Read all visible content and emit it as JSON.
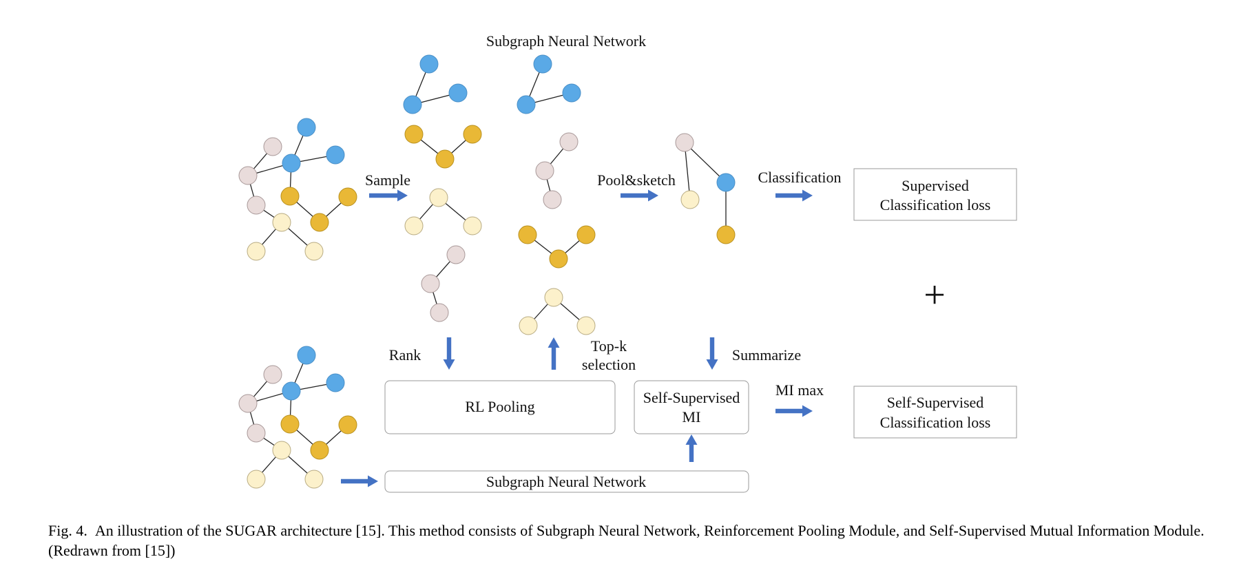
{
  "labels": {
    "subgraph_nn_top": "Subgraph Neural Network",
    "sample": "Sample",
    "pool_sketch": "Pool&sketch",
    "classification": "Classification",
    "supervised_loss": [
      "Supervised",
      "Classification loss"
    ],
    "plus": "+",
    "rank": "Rank",
    "topk": [
      "Top-k",
      "selection"
    ],
    "summarize": "Summarize",
    "rl_pooling": "RL Pooling",
    "self_supervised_mi": [
      "Self-Supervised",
      "MI"
    ],
    "mi_max": "MI max",
    "self_supervised_loss": [
      "Self-Supervised",
      "Classification loss"
    ],
    "subgraph_nn_bottom": "Subgraph Neural Network"
  },
  "caption": {
    "fig": "Fig. 4.",
    "text": "An illustration of the SUGAR architecture [15]. This method consists of Subgraph Neural Network, Reinforcement Pooling Module, and Self-Supervised Mutual Information Module. (Redrawn from [15])"
  },
  "colors": {
    "blue": "#5aa9e6",
    "gold": "#e9b836",
    "pink": "#e9dcdb",
    "cream": "#fcf1cb",
    "arrow": "#4472c4"
  }
}
